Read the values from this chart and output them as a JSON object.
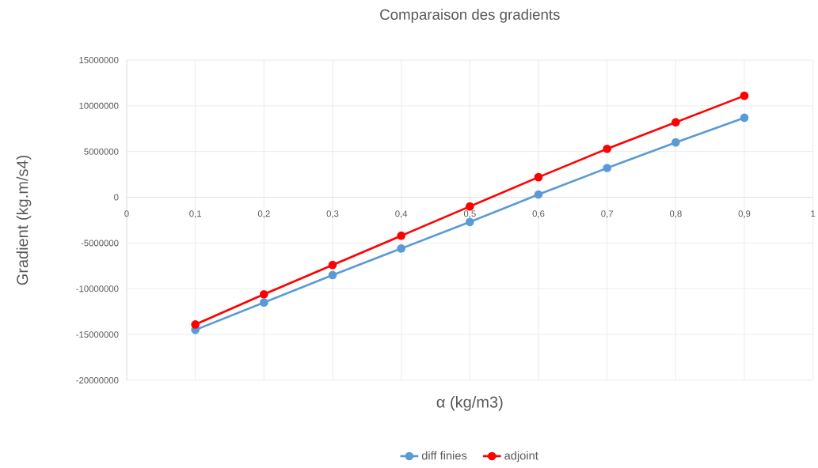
{
  "chart_data": {
    "type": "line",
    "title": "Comparaison des gradients",
    "xlabel": "α (kg/m3)",
    "ylabel": "Gradient (kg.m/s4)",
    "x": [
      0.1,
      0.2,
      0.3,
      0.4,
      0.5,
      0.6,
      0.7,
      0.8,
      0.9
    ],
    "series": [
      {
        "name": "diff finies",
        "color": "#5b9bd5",
        "values": [
          -14500000,
          -11500000,
          -8500000,
          -5600000,
          -2700000,
          300000,
          3200000,
          6000000,
          8700000
        ]
      },
      {
        "name": "adjoint",
        "color": "#ff0000",
        "values": [
          -13900000,
          -10600000,
          -7400000,
          -4200000,
          -1000000,
          2200000,
          5300000,
          8200000,
          11100000
        ]
      }
    ],
    "xlim": [
      0,
      1
    ],
    "xticks": [
      {
        "value": 0,
        "label": "0"
      },
      {
        "value": 0.1,
        "label": "0,1"
      },
      {
        "value": 0.2,
        "label": "0,2"
      },
      {
        "value": 0.3,
        "label": "0,3"
      },
      {
        "value": 0.4,
        "label": "0,4"
      },
      {
        "value": 0.5,
        "label": "0,5"
      },
      {
        "value": 0.6,
        "label": "0,6"
      },
      {
        "value": 0.7,
        "label": "0,7"
      },
      {
        "value": 0.8,
        "label": "0,8"
      },
      {
        "value": 0.9,
        "label": "0,9"
      },
      {
        "value": 1,
        "label": "1"
      }
    ],
    "ylim": [
      -20000000,
      15000000
    ],
    "yticks": [
      -20000000,
      -15000000,
      -10000000,
      -5000000,
      0,
      5000000,
      10000000,
      15000000
    ],
    "grid": true,
    "legend": "bottom",
    "marker": "circle",
    "line_style": "solid"
  }
}
